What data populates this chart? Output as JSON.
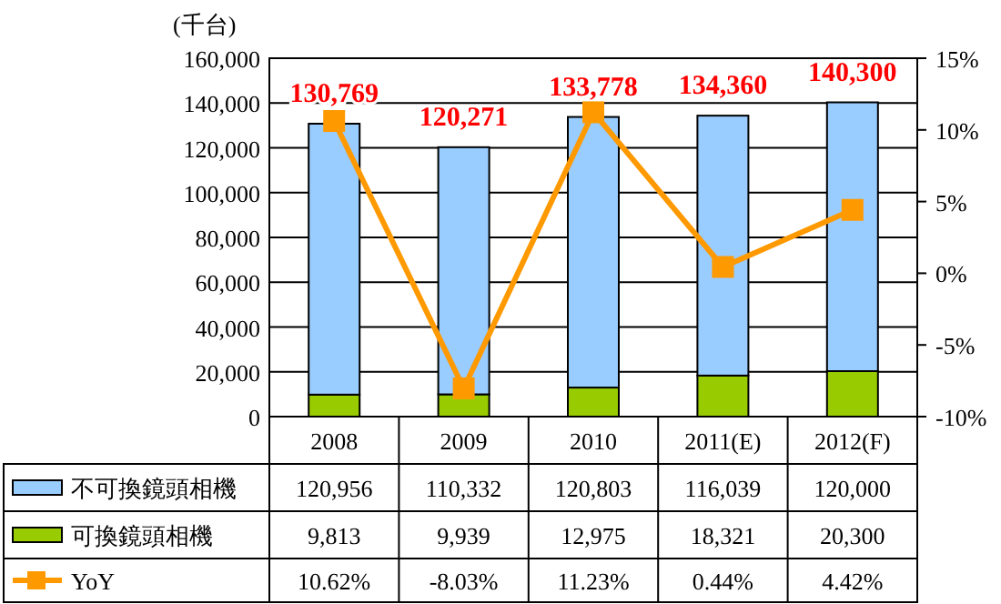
{
  "chart_data": {
    "type": "bar",
    "stacked": true,
    "ylabel": "(千台)",
    "categories": [
      "2008",
      "2009",
      "2010",
      "2011(E)",
      "2012(F)"
    ],
    "series": [
      {
        "name": "可換鏡頭相機",
        "color": "#99cc00",
        "values": [
          9813,
          9939,
          12975,
          18321,
          20300
        ],
        "value_labels": [
          "9,813",
          "9,939",
          "12,975",
          "18,321",
          "20,300"
        ]
      },
      {
        "name": "不可換鏡頭相機",
        "color": "#99ccff",
        "values": [
          120956,
          110332,
          120803,
          116039,
          120000
        ],
        "value_labels": [
          "120,956",
          "110,332",
          "120,803",
          "116,039",
          "120,000"
        ]
      },
      {
        "name": "YoY",
        "type": "line",
        "axis": "y2",
        "color": "#ff9900",
        "marker": "square",
        "values": [
          10.62,
          -8.03,
          11.23,
          0.44,
          4.42
        ],
        "value_labels": [
          "10.62%",
          "-8.03%",
          "11.23%",
          "0.44%",
          "4.42%"
        ]
      }
    ],
    "totals": [
      "130,769",
      "120,271",
      "133,778",
      "134,360",
      "140,300"
    ],
    "ylim": [
      0,
      160000
    ],
    "yticks": [
      {
        "value": 0,
        "label": "0"
      },
      {
        "value": 20000,
        "label": "20,000"
      },
      {
        "value": 40000,
        "label": "40,000"
      },
      {
        "value": 60000,
        "label": "60,000"
      },
      {
        "value": 80000,
        "label": "80,000"
      },
      {
        "value": 100000,
        "label": "100,000"
      },
      {
        "value": 120000,
        "label": "120,000"
      },
      {
        "value": 140000,
        "label": "140,000"
      },
      {
        "value": 160000,
        "label": "160,000"
      }
    ],
    "y2lim": [
      -10,
      15
    ],
    "y2ticks": [
      {
        "value": -10,
        "label": "-10%"
      },
      {
        "value": -5,
        "label": "-5%"
      },
      {
        "value": 0,
        "label": "0%"
      },
      {
        "value": 5,
        "label": "5%"
      },
      {
        "value": 10,
        "label": "10%"
      },
      {
        "value": 15,
        "label": "15%"
      }
    ],
    "grid": "y",
    "legend": "bottom"
  }
}
